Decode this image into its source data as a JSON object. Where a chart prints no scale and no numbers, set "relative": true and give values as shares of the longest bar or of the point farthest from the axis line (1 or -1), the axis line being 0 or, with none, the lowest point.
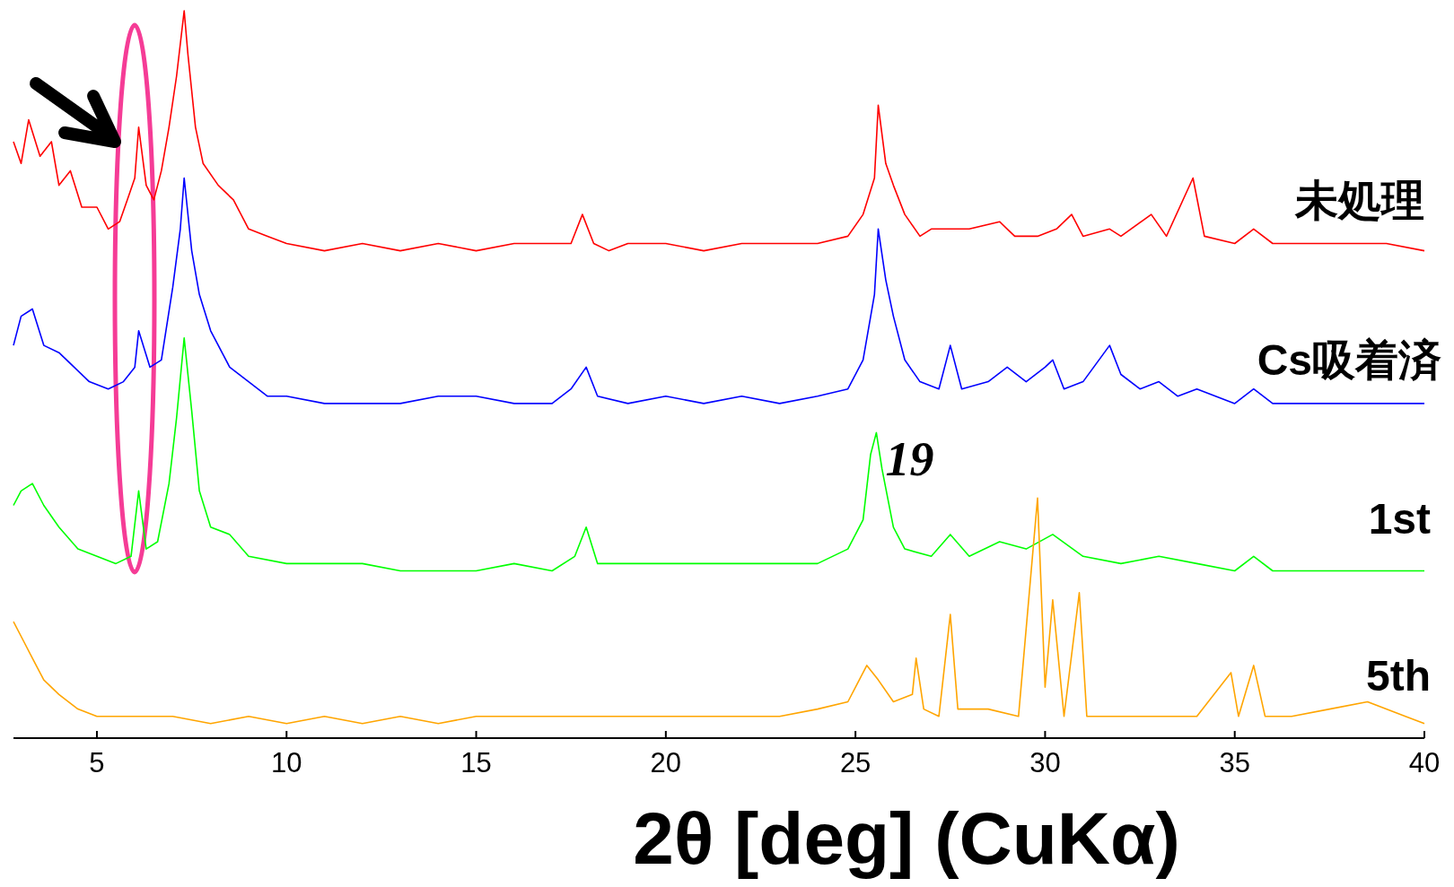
{
  "chart_data": {
    "type": "line",
    "relative": true,
    "xlabel": "2θ [deg] (CuKα)",
    "xlim": [
      2.8,
      40
    ],
    "xticks": [
      5,
      10,
      15,
      20,
      25,
      30,
      35,
      40
    ],
    "annotations": [
      {
        "text": "19",
        "x": 25.6,
        "y": 0.42
      }
    ],
    "series": [
      {
        "name": "未処理",
        "color": "#ff0000",
        "x": [
          2.8,
          3.0,
          3.2,
          3.5,
          3.8,
          4.0,
          4.3,
          4.6,
          5.0,
          5.3,
          5.6,
          5.8,
          6.0,
          6.1,
          6.3,
          6.5,
          6.7,
          6.9,
          7.1,
          7.3,
          7.4,
          7.6,
          7.8,
          8.2,
          8.6,
          9.0,
          9.5,
          10,
          11,
          12,
          13,
          14,
          15,
          16,
          17,
          17.5,
          17.8,
          18.1,
          18.5,
          19,
          20,
          21,
          22,
          23,
          24,
          24.8,
          25.2,
          25.5,
          25.6,
          25.8,
          26.0,
          26.3,
          26.7,
          27,
          28,
          28.8,
          29.2,
          29.8,
          30.3,
          30.7,
          31,
          31.7,
          32,
          32.8,
          33.2,
          33.9,
          34.2,
          35,
          35.5,
          36,
          37,
          38,
          39,
          40
        ],
        "values": [
          0.82,
          0.79,
          0.85,
          0.8,
          0.82,
          0.76,
          0.78,
          0.73,
          0.73,
          0.7,
          0.71,
          0.74,
          0.77,
          0.84,
          0.76,
          0.74,
          0.78,
          0.84,
          0.91,
          1.0,
          0.94,
          0.84,
          0.79,
          0.76,
          0.74,
          0.7,
          0.69,
          0.68,
          0.67,
          0.68,
          0.67,
          0.68,
          0.67,
          0.68,
          0.68,
          0.68,
          0.72,
          0.68,
          0.67,
          0.68,
          0.68,
          0.67,
          0.68,
          0.68,
          0.68,
          0.69,
          0.72,
          0.77,
          0.87,
          0.79,
          0.76,
          0.72,
          0.69,
          0.7,
          0.7,
          0.71,
          0.69,
          0.69,
          0.7,
          0.72,
          0.69,
          0.7,
          0.69,
          0.72,
          0.69,
          0.77,
          0.69,
          0.68,
          0.7,
          0.68,
          0.68,
          0.68,
          0.68,
          0.67
        ]
      },
      {
        "name": "Cs吸着済",
        "color": "#0000ff",
        "x": [
          2.8,
          3.0,
          3.3,
          3.6,
          4.0,
          4.4,
          4.8,
          5.3,
          5.7,
          6.0,
          6.1,
          6.4,
          6.7,
          7.0,
          7.2,
          7.3,
          7.5,
          7.7,
          8.0,
          8.5,
          9.0,
          9.5,
          10,
          11,
          12,
          13,
          14,
          15,
          16,
          17,
          17.5,
          17.9,
          18.2,
          19,
          20,
          21,
          22,
          23,
          24,
          24.8,
          25.2,
          25.5,
          25.6,
          25.8,
          26.0,
          26.3,
          26.7,
          27.2,
          27.5,
          27.8,
          28.5,
          29,
          29.5,
          30,
          30.2,
          30.5,
          31,
          31.7,
          32,
          32.5,
          33,
          33.5,
          34,
          35,
          35.5,
          36,
          37,
          38,
          39,
          40
        ],
        "values": [
          0.54,
          0.58,
          0.59,
          0.54,
          0.53,
          0.51,
          0.49,
          0.48,
          0.49,
          0.51,
          0.56,
          0.51,
          0.52,
          0.62,
          0.7,
          0.77,
          0.67,
          0.61,
          0.56,
          0.51,
          0.49,
          0.47,
          0.47,
          0.46,
          0.46,
          0.46,
          0.47,
          0.47,
          0.46,
          0.46,
          0.48,
          0.51,
          0.47,
          0.46,
          0.47,
          0.46,
          0.47,
          0.46,
          0.47,
          0.48,
          0.52,
          0.61,
          0.7,
          0.63,
          0.58,
          0.52,
          0.49,
          0.48,
          0.54,
          0.48,
          0.49,
          0.51,
          0.49,
          0.51,
          0.52,
          0.48,
          0.49,
          0.54,
          0.5,
          0.48,
          0.49,
          0.47,
          0.48,
          0.46,
          0.48,
          0.46,
          0.46,
          0.46,
          0.46,
          0.46
        ]
      },
      {
        "name": "1st",
        "color": "#00ff00",
        "x": [
          2.8,
          3.0,
          3.3,
          3.6,
          4.0,
          4.5,
          5.0,
          5.5,
          5.9,
          6.1,
          6.3,
          6.6,
          6.9,
          7.1,
          7.3,
          7.5,
          7.7,
          8.0,
          8.5,
          9.0,
          10,
          11,
          12,
          13,
          14,
          15,
          16,
          17,
          17.6,
          17.9,
          18.2,
          19,
          20,
          21,
          22,
          23,
          24,
          24.8,
          25.2,
          25.4,
          25.55,
          25.7,
          26.0,
          26.3,
          27,
          27.5,
          28,
          28.8,
          29.5,
          30.2,
          31,
          32,
          33,
          34,
          35,
          35.5,
          36,
          37,
          38,
          39,
          40
        ],
        "values": [
          0.32,
          0.34,
          0.35,
          0.32,
          0.29,
          0.26,
          0.25,
          0.24,
          0.25,
          0.34,
          0.26,
          0.27,
          0.35,
          0.44,
          0.55,
          0.45,
          0.34,
          0.29,
          0.28,
          0.25,
          0.24,
          0.24,
          0.24,
          0.23,
          0.23,
          0.23,
          0.24,
          0.23,
          0.25,
          0.29,
          0.24,
          0.24,
          0.24,
          0.24,
          0.24,
          0.24,
          0.24,
          0.26,
          0.3,
          0.39,
          0.42,
          0.37,
          0.29,
          0.26,
          0.25,
          0.28,
          0.25,
          0.27,
          0.26,
          0.28,
          0.25,
          0.24,
          0.25,
          0.24,
          0.23,
          0.25,
          0.23,
          0.23,
          0.23,
          0.23,
          0.23
        ]
      },
      {
        "name": "5th",
        "color": "#ffa500",
        "x": [
          2.8,
          3.0,
          3.3,
          3.6,
          4.0,
          4.5,
          5,
          6,
          7,
          8,
          9,
          10,
          11,
          12,
          13,
          14,
          15,
          16,
          17,
          18,
          19,
          20,
          21,
          22,
          23,
          24,
          24.8,
          25.3,
          25.6,
          26,
          26.5,
          26.6,
          26.8,
          27.2,
          27.5,
          27.7,
          28.5,
          29.3,
          29.8,
          30.0,
          30.2,
          30.5,
          30.9,
          31.1,
          32,
          33,
          34,
          34.9,
          35.1,
          35.5,
          35.8,
          36.5,
          37.5,
          38.5,
          39.5,
          40
        ],
        "values": [
          0.16,
          0.14,
          0.11,
          0.08,
          0.06,
          0.04,
          0.03,
          0.03,
          0.03,
          0.02,
          0.03,
          0.02,
          0.03,
          0.02,
          0.03,
          0.02,
          0.03,
          0.03,
          0.03,
          0.03,
          0.03,
          0.03,
          0.03,
          0.03,
          0.03,
          0.04,
          0.05,
          0.1,
          0.08,
          0.05,
          0.06,
          0.11,
          0.04,
          0.03,
          0.17,
          0.04,
          0.04,
          0.03,
          0.33,
          0.07,
          0.19,
          0.03,
          0.2,
          0.03,
          0.03,
          0.03,
          0.03,
          0.09,
          0.03,
          0.1,
          0.03,
          0.03,
          0.04,
          0.05,
          0.03,
          0.02
        ]
      }
    ]
  }
}
